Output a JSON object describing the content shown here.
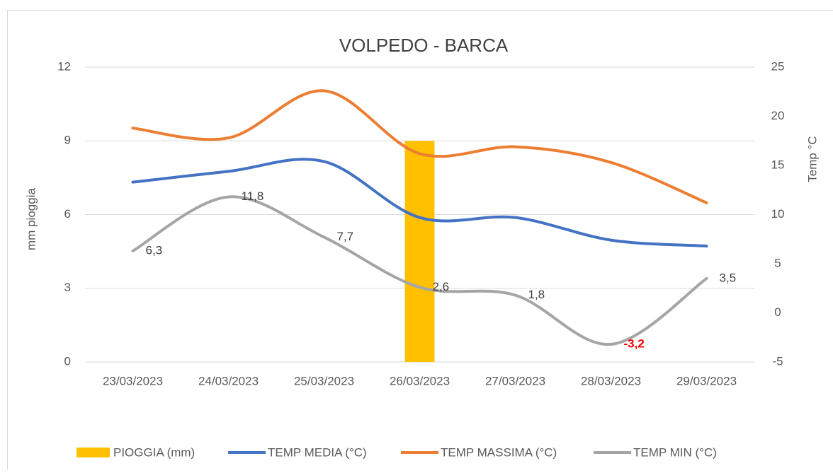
{
  "chart_data": {
    "type": "combo",
    "title": "VOLPEDO - BARCA",
    "y_label": "mm pioggia",
    "y2_label": "Temp °C",
    "categories": [
      "23/03/2023",
      "24/03/2023",
      "25/03/2023",
      "26/03/2023",
      "27/03/2023",
      "28/03/2023",
      "29/03/2023"
    ],
    "ylim": [
      0,
      12
    ],
    "yticks": [
      0,
      3,
      6,
      9,
      12
    ],
    "y2lim": [
      -5,
      25
    ],
    "y2ticks": [
      -5,
      0,
      5,
      10,
      15,
      20,
      25
    ],
    "grid": true,
    "legend": "bottom",
    "series": [
      {
        "name": "PIOGGIA (mm)",
        "type": "bar",
        "axis": "y",
        "color": "#ffc000",
        "values": [
          0,
          0,
          0,
          9,
          0,
          0,
          0
        ]
      },
      {
        "name": "TEMP MEDIA (°C)",
        "type": "line",
        "axis": "y2",
        "color": "#4472c4",
        "values": [
          13.3,
          14.4,
          15.4,
          9.7,
          9.7,
          7.4,
          6.8
        ]
      },
      {
        "name": "TEMP MASSIMA (°C)",
        "type": "line",
        "axis": "y2",
        "color": "#ed7d31",
        "values": [
          18.8,
          17.8,
          22.6,
          16.2,
          16.9,
          15.3,
          11.2
        ]
      },
      {
        "name": "TEMP MIN (°C)",
        "type": "line",
        "axis": "y2",
        "color": "#a5a5a5",
        "values": [
          6.3,
          11.8,
          7.7,
          2.6,
          1.8,
          -3.2,
          3.5
        ],
        "value_labels": [
          "6,3",
          "11,8",
          "7,7",
          "2,6",
          "1,8",
          "-3,2",
          "3,5"
        ],
        "value_label_colors": [
          "#404040",
          "#404040",
          "#404040",
          "#404040",
          "#404040",
          "#ff0000",
          "#404040"
        ]
      }
    ]
  }
}
